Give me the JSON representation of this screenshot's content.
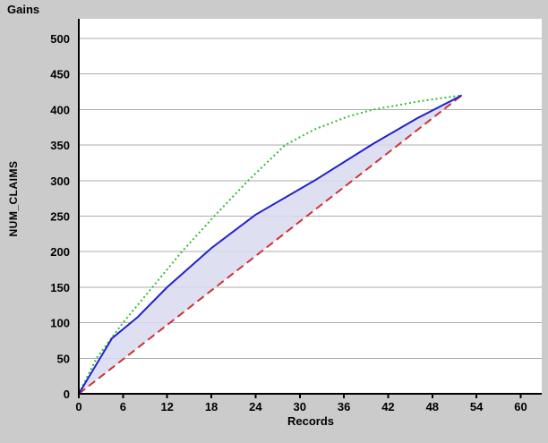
{
  "title": "Gains",
  "colors": {
    "window_bg": "#cbcbcb",
    "plot_bg": "#ffffff",
    "gridline": "#ababab",
    "axis_line": "#000000",
    "text": "#000000",
    "model_line": "#2222cc",
    "best_line": "#33bb33",
    "baseline_line": "#cc3333",
    "fill_between": "#d9d9f0"
  },
  "chart_data": {
    "type": "line",
    "title": "Gains",
    "xlabel": "Records",
    "ylabel": "NUM_CLAIMS",
    "xlim": [
      0,
      62.8
    ],
    "ylim": [
      0,
      527
    ],
    "x_ticks": [
      0,
      6,
      12,
      18,
      24,
      30,
      36,
      42,
      48,
      54,
      60
    ],
    "y_ticks": [
      0,
      50,
      100,
      150,
      200,
      250,
      300,
      350,
      400,
      450,
      500
    ],
    "grid": "horizontal-only",
    "legend_position": "none",
    "series": [
      {
        "name": "baseline-red-dashed",
        "style": "dashed",
        "color": "#cc3333",
        "points": [
          [
            0,
            0
          ],
          [
            52,
            420
          ]
        ]
      },
      {
        "name": "best-green-dotted",
        "style": "dotted",
        "color": "#33bb33",
        "points": [
          [
            0,
            0
          ],
          [
            2.4,
            50
          ],
          [
            6,
            100
          ],
          [
            10,
            150
          ],
          [
            14,
            200
          ],
          [
            18.4,
            250
          ],
          [
            23,
            300
          ],
          [
            28,
            350
          ],
          [
            32,
            372
          ],
          [
            36.5,
            390
          ],
          [
            40,
            400
          ],
          [
            46.5,
            412
          ],
          [
            52,
            420
          ]
        ]
      },
      {
        "name": "model-blue-solid",
        "style": "solid",
        "color": "#2222cc",
        "fill_to_baseline": true,
        "points": [
          [
            0,
            0
          ],
          [
            4.5,
            78
          ],
          [
            8,
            108
          ],
          [
            12,
            150
          ],
          [
            18,
            205
          ],
          [
            24,
            252
          ],
          [
            32,
            300
          ],
          [
            40,
            352
          ],
          [
            46,
            388
          ],
          [
            52,
            420
          ]
        ]
      }
    ]
  }
}
